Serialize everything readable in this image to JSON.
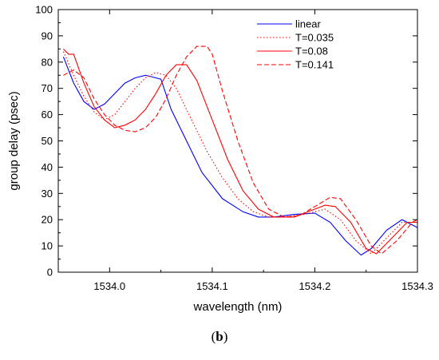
{
  "panel": {
    "open": "(",
    "letter": "b",
    "close": ")"
  },
  "chart_data": {
    "type": "line",
    "xlabel": "wavelength (nm)",
    "ylabel": "group delay (psec)",
    "xlim": [
      1533.95,
      1534.3
    ],
    "ylim": [
      0,
      100
    ],
    "xticks": [
      1534.0,
      1534.1,
      1534.2,
      1534.3
    ],
    "xtick_labels": [
      "1534.0",
      "1534.1",
      "1534.2",
      "1534.3"
    ],
    "yticks": [
      0,
      10,
      20,
      30,
      40,
      50,
      60,
      70,
      80,
      90,
      100
    ],
    "ytick_labels": [
      "0",
      "10",
      "20",
      "30",
      "40",
      "50",
      "60",
      "70",
      "80",
      "90",
      "100"
    ],
    "grid": false,
    "legend_position": "top-right",
    "series": [
      {
        "name": "linear",
        "color": "#0000ff",
        "dash": "solid",
        "x": [
          1533.955,
          1533.965,
          1533.975,
          1533.985,
          1533.995,
          1534.005,
          1534.015,
          1534.025,
          1534.035,
          1534.04,
          1534.05,
          1534.06,
          1534.075,
          1534.09,
          1534.11,
          1534.13,
          1534.145,
          1534.16,
          1534.18,
          1534.2,
          1534.215,
          1534.23,
          1534.245,
          1534.255,
          1534.27,
          1534.285,
          1534.3
        ],
        "y": [
          82,
          72,
          65,
          62,
          64,
          68,
          72,
          74,
          75,
          74.5,
          73.5,
          62,
          50,
          38,
          28,
          23,
          21,
          21,
          22,
          22.5,
          19,
          12,
          6.5,
          9,
          16,
          20,
          17
        ]
      },
      {
        "name": "T=0.035",
        "color": "#ff0000",
        "dash": "dotted",
        "x": [
          1533.955,
          1533.965,
          1533.975,
          1533.985,
          1533.995,
          1534.005,
          1534.015,
          1534.025,
          1534.035,
          1534.045,
          1534.055,
          1534.065,
          1534.08,
          1534.095,
          1534.11,
          1534.125,
          1534.14,
          1534.155,
          1534.17,
          1534.19,
          1534.21,
          1534.225,
          1534.24,
          1534.255,
          1534.27,
          1534.285,
          1534.3
        ],
        "y": [
          84,
          75,
          67,
          61,
          58,
          60,
          65,
          70,
          74,
          76,
          75,
          70,
          58,
          46,
          36,
          28,
          23,
          21,
          21,
          22,
          24,
          20,
          12,
          7,
          13,
          19,
          19
        ]
      },
      {
        "name": "T=0.08",
        "color": "#ff0000",
        "dash": "solid",
        "x": [
          1533.955,
          1533.96,
          1533.965,
          1533.975,
          1533.985,
          1533.995,
          1534.005,
          1534.015,
          1534.025,
          1534.035,
          1534.045,
          1534.055,
          1534.065,
          1534.075,
          1534.085,
          1534.1,
          1534.115,
          1534.13,
          1534.145,
          1534.16,
          1534.18,
          1534.2,
          1534.21,
          1534.22,
          1534.235,
          1534.25,
          1534.26,
          1534.275,
          1534.29,
          1534.3
        ],
        "y": [
          85,
          83,
          83,
          72,
          63,
          58,
          55,
          56,
          58,
          62,
          68,
          75,
          79,
          79,
          73,
          58,
          43,
          31,
          24,
          21,
          21,
          24,
          25.5,
          25,
          19,
          9,
          7,
          13,
          19,
          19
        ]
      },
      {
        "name": "T=0.141",
        "color": "#ff0000",
        "dash": "dashed",
        "x": [
          1533.955,
          1533.965,
          1533.975,
          1533.985,
          1533.995,
          1534.005,
          1534.015,
          1534.025,
          1534.035,
          1534.045,
          1534.055,
          1534.065,
          1534.075,
          1534.085,
          1534.095,
          1534.1,
          1534.11,
          1534.125,
          1534.14,
          1534.155,
          1534.17,
          1534.185,
          1534.2,
          1534.215,
          1534.225,
          1534.24,
          1534.255,
          1534.265,
          1534.28,
          1534.295,
          1534.3
        ],
        "y": [
          75,
          77,
          74,
          66,
          60,
          56,
          54,
          53.5,
          55,
          59,
          66,
          75,
          82,
          86,
          86,
          83,
          69,
          50,
          34,
          24,
          21,
          21.5,
          25,
          28.5,
          28,
          20,
          10,
          7,
          12,
          19,
          20
        ]
      }
    ]
  }
}
